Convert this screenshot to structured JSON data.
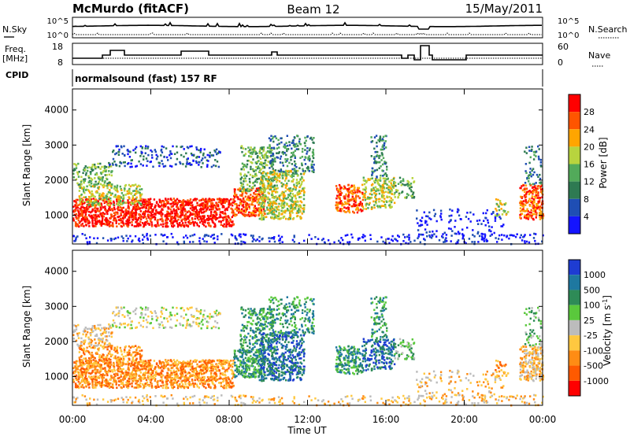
{
  "header": {
    "station": "McMurdo (fitACF)",
    "beam": "Beam 12",
    "date": "15/May/2011"
  },
  "noise_panel": {
    "left_label": "N.Sky",
    "right_label": "N.Search",
    "right_label_style": "dotted",
    "left_ticks": [
      "10^5",
      "10^0"
    ],
    "right_ticks": [
      "10^5",
      "10^0"
    ]
  },
  "freq_panel": {
    "left_label_line1": "Freq.",
    "left_label_line2": "[MHz]",
    "right_label": "Nave",
    "right_label_style": "dotted",
    "left_ticks": [
      "18",
      "8"
    ],
    "right_ticks": [
      "60",
      "0"
    ]
  },
  "cpid_panel": {
    "label": "CPID",
    "mode": "normalsound (fast) 157 RF"
  },
  "x_axis": {
    "title": "Time UT",
    "ticks": [
      "00:00",
      "04:00",
      "08:00",
      "12:00",
      "16:00",
      "20:00",
      "00:00"
    ]
  },
  "chart_data": [
    {
      "type": "heatmap",
      "panel": "power",
      "ylabel": "Slant Range [km]",
      "yticks": [
        "1000",
        "2000",
        "3000",
        "4000"
      ],
      "ylim": [
        180,
        4600
      ],
      "xlim_hours": [
        0,
        24
      ],
      "colorbar": {
        "label": "Power [dB]",
        "ticks": [
          "4",
          "8",
          "12",
          "16",
          "20",
          "24",
          "28"
        ],
        "range": [
          0,
          32
        ],
        "colors": [
          "#1414ff",
          "#1f4eb4",
          "#2e7a52",
          "#52aa5a",
          "#b8d43e",
          "#ffa500",
          "#ff5500",
          "#ff0000"
        ]
      }
    },
    {
      "type": "heatmap",
      "panel": "velocity",
      "ylabel": "Slant Range [km]",
      "yticks": [
        "1000",
        "2000",
        "3000",
        "4000"
      ],
      "ylim": [
        180,
        4600
      ],
      "xlim_hours": [
        0,
        24
      ],
      "colorbar": {
        "label": "Velocity [m s^-1]",
        "ticks": [
          "1000",
          "500",
          "100",
          "25",
          "-25",
          "-100",
          "-500",
          "-1000"
        ],
        "colors": [
          "#1e3cd2",
          "#1e78a0",
          "#2e8b57",
          "#5ac83c",
          "#bcbcbc",
          "#ffc840",
          "#ff8c14",
          "#ff5a00",
          "#ff0000"
        ]
      }
    }
  ]
}
